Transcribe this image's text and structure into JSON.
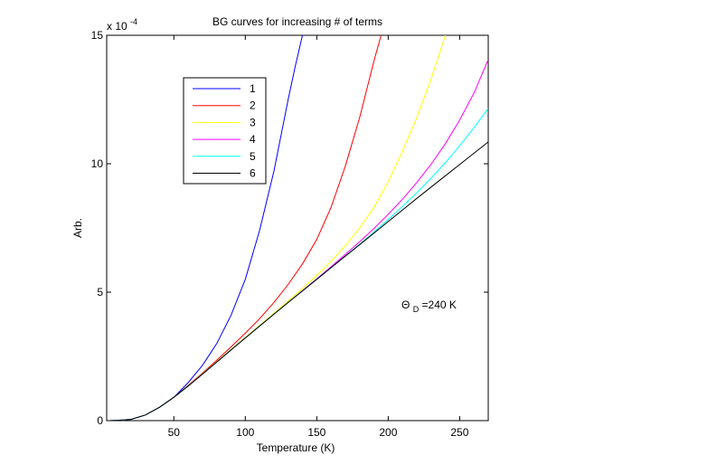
{
  "chart_data": {
    "type": "line",
    "title": "BG curves for increasing # of terms",
    "xlabel": "Temperature (K)",
    "ylabel": "Arb.",
    "y_multiplier": {
      "base": "x 10",
      "exponent": "-4"
    },
    "xlim": [
      3,
      270
    ],
    "ylim": [
      0,
      15
    ],
    "x_ticks": [
      50,
      100,
      150,
      200,
      250
    ],
    "y_ticks": [
      0,
      5,
      10,
      15
    ],
    "grid": false,
    "legend_position": "upper-left",
    "series": [
      {
        "name": "1",
        "color": "#0000ff",
        "x": [
          5,
          10,
          20,
          30,
          40,
          50,
          60,
          70,
          80,
          90,
          100,
          110,
          120,
          130,
          135,
          140
        ],
        "y": [
          0.0,
          0.01,
          0.05,
          0.22,
          0.52,
          0.91,
          1.48,
          2.15,
          3.0,
          4.1,
          5.5,
          7.4,
          9.7,
          12.5,
          13.8,
          15.0
        ]
      },
      {
        "name": "2",
        "color": "#ff0000",
        "x": [
          5,
          10,
          20,
          30,
          40,
          50,
          60,
          70,
          80,
          90,
          100,
          110,
          120,
          130,
          140,
          150,
          160,
          170,
          180,
          190,
          195
        ],
        "y": [
          0.0,
          0.01,
          0.05,
          0.22,
          0.52,
          0.91,
          1.37,
          1.85,
          2.35,
          2.87,
          3.4,
          3.97,
          4.6,
          5.3,
          6.1,
          7.05,
          8.3,
          9.9,
          11.8,
          14.0,
          15.0
        ]
      },
      {
        "name": "3",
        "color": "#ffff00",
        "x": [
          5,
          10,
          20,
          30,
          40,
          50,
          60,
          70,
          80,
          90,
          100,
          110,
          120,
          130,
          140,
          150,
          160,
          170,
          180,
          190,
          200,
          210,
          220,
          230,
          240
        ],
        "y": [
          0.0,
          0.01,
          0.05,
          0.22,
          0.52,
          0.91,
          1.35,
          1.82,
          2.3,
          2.77,
          3.24,
          3.71,
          4.18,
          4.66,
          5.14,
          5.65,
          6.2,
          6.8,
          7.5,
          8.3,
          9.3,
          10.5,
          11.8,
          13.3,
          15.0
        ]
      },
      {
        "name": "4",
        "color": "#ff00ff",
        "x": [
          5,
          10,
          20,
          30,
          40,
          50,
          60,
          70,
          80,
          90,
          100,
          110,
          120,
          130,
          140,
          150,
          160,
          170,
          180,
          190,
          200,
          210,
          220,
          230,
          240,
          250,
          260,
          270
        ],
        "y": [
          0.0,
          0.01,
          0.05,
          0.22,
          0.52,
          0.91,
          1.35,
          1.81,
          2.28,
          2.75,
          3.22,
          3.68,
          4.14,
          4.6,
          5.06,
          5.52,
          5.99,
          6.47,
          6.96,
          7.48,
          8.03,
          8.62,
          9.27,
          9.98,
          10.78,
          11.7,
          12.75,
          14.05
        ]
      },
      {
        "name": "5",
        "color": "#00ffff",
        "x": [
          5,
          10,
          20,
          30,
          40,
          50,
          60,
          70,
          80,
          90,
          100,
          110,
          120,
          130,
          140,
          150,
          160,
          170,
          180,
          190,
          200,
          210,
          220,
          230,
          240,
          250,
          260,
          270
        ],
        "y": [
          0.0,
          0.01,
          0.05,
          0.22,
          0.52,
          0.91,
          1.35,
          1.81,
          2.28,
          2.75,
          3.22,
          3.68,
          4.14,
          4.6,
          5.05,
          5.5,
          5.95,
          6.41,
          6.87,
          7.34,
          7.83,
          8.34,
          8.87,
          9.44,
          10.04,
          10.7,
          11.4,
          12.15
        ]
      },
      {
        "name": "6",
        "color": "#000000",
        "x": [
          5,
          10,
          20,
          30,
          40,
          50,
          60,
          70,
          80,
          90,
          100,
          110,
          120,
          130,
          140,
          150,
          160,
          170,
          180,
          190,
          200,
          210,
          220,
          230,
          240,
          250,
          260,
          270
        ],
        "y": [
          0.0,
          0.01,
          0.05,
          0.22,
          0.52,
          0.91,
          1.35,
          1.81,
          2.28,
          2.75,
          3.22,
          3.68,
          4.14,
          4.6,
          5.05,
          5.5,
          5.95,
          6.4,
          6.85,
          7.3,
          7.75,
          8.2,
          8.65,
          9.09,
          9.53,
          9.97,
          10.41,
          10.85
        ]
      }
    ],
    "annotation": {
      "symbol": "Θ",
      "subscript": "D",
      "text": "=240 K"
    }
  }
}
